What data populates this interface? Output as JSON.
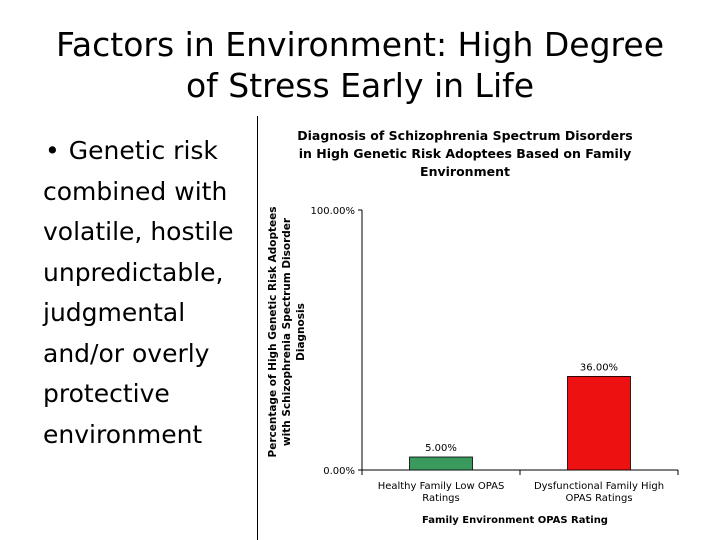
{
  "slide": {
    "title_line1": "Factors in Environment: High Degree",
    "title_line2": "of Stress Early in Life",
    "bullet_marker": "•",
    "bullet_lines": [
      "Genetic risk",
      "combined with",
      "volatile, hostile",
      "unpredictable,",
      "judgmental",
      "and/or overly",
      "protective",
      "environment"
    ]
  },
  "chart_data": {
    "type": "bar",
    "title_lines": [
      "Diagnosis of Schizophrenia Spectrum Disorders",
      "in High Genetic Risk Adoptees Based on Family",
      "Environment"
    ],
    "ylabel_lines": [
      "Percentage of High Genetic Risk Adoptees",
      "with Schizophrenia Spectrum Disorder",
      "Diagnosis"
    ],
    "xlabel": "Family Environment OPAS Rating",
    "ylim": [
      0,
      100
    ],
    "y_ticks": [
      0,
      100
    ],
    "y_tick_labels": [
      "0.00%",
      "100.00%"
    ],
    "categories": [
      {
        "line1": "Healthy Family Low OPAS",
        "line2": "Ratings"
      },
      {
        "line1": "Dysfunctional Family High",
        "line2": "OPAS Ratings"
      }
    ],
    "values": [
      5,
      36
    ],
    "data_labels": [
      "5.00%",
      "36.00%"
    ],
    "bar_colors": [
      "#3a9a5e",
      "#ee1111"
    ],
    "grid": false,
    "legend": "none"
  }
}
